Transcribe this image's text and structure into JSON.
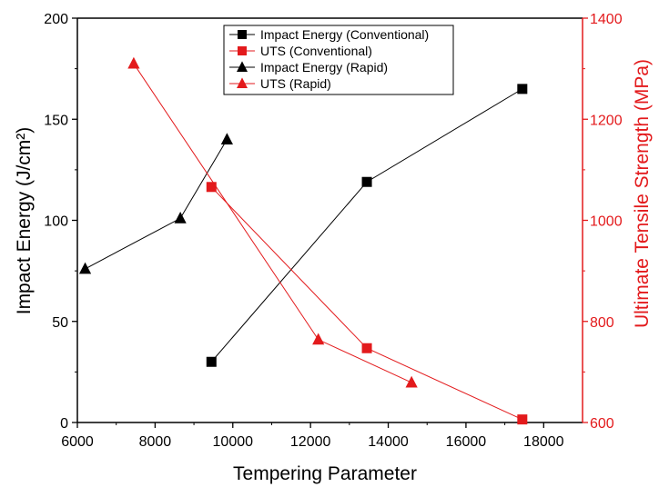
{
  "chart_data": {
    "type": "line",
    "xlabel": "Tempering Parameter",
    "ylabel_left": "Impact Energy (J/cm²)",
    "ylabel_right": "Ultimate Tensile Strength (MPa)",
    "xlim": [
      6000,
      19000
    ],
    "xticks": [
      6000,
      8000,
      10000,
      12000,
      14000,
      16000,
      18000
    ],
    "ylim_left": [
      0,
      200
    ],
    "yticks_left": [
      0,
      50,
      100,
      150,
      200
    ],
    "ylim_right": [
      600,
      1400
    ],
    "yticks_right": [
      600,
      800,
      1000,
      1200,
      1400
    ],
    "grid": false,
    "legend_position": "top-center",
    "colors": {
      "black": "#000000",
      "red": "#e31a1c"
    },
    "series": [
      {
        "name": "Impact Energy (Conventional)",
        "axis": "left",
        "marker": "square",
        "color": "#000000",
        "x": [
          9450,
          13450,
          17450
        ],
        "y": [
          30,
          119,
          165
        ]
      },
      {
        "name": "UTS (Conventional)",
        "axis": "right",
        "marker": "square",
        "color": "#e31a1c",
        "x": [
          9450,
          13450,
          17450
        ],
        "y": [
          1066,
          747,
          606
        ]
      },
      {
        "name": "Impact Energy (Rapid)",
        "axis": "left",
        "marker": "triangle",
        "color": "#000000",
        "x": [
          6200,
          8650,
          9850
        ],
        "y": [
          76,
          101,
          140
        ]
      },
      {
        "name": "UTS (Rapid)",
        "axis": "right",
        "marker": "triangle",
        "color": "#e31a1c",
        "x": [
          7450,
          12200,
          14600
        ],
        "y": [
          1310,
          764,
          679
        ]
      }
    ]
  }
}
